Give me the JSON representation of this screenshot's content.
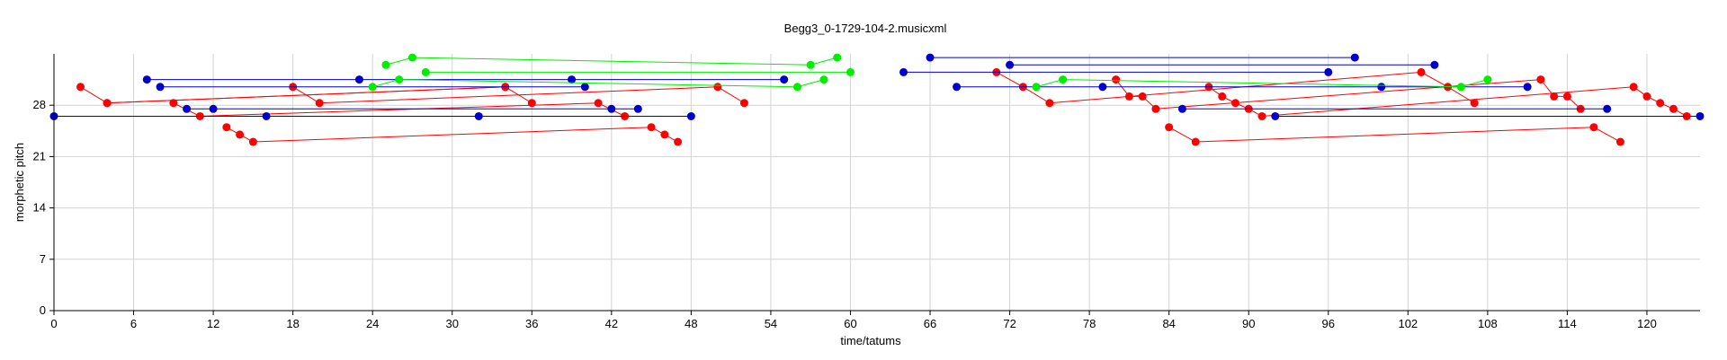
{
  "chart_data": {
    "type": "line",
    "title": "Begg3_0-1729-104-2.musicxml",
    "xlabel": "time/tatums",
    "ylabel": "morphetic pitch",
    "xlim": [
      0,
      124
    ],
    "ylim": [
      0,
      35
    ],
    "xticks": [
      0,
      6,
      12,
      18,
      24,
      30,
      36,
      42,
      48,
      54,
      60,
      66,
      72,
      78,
      84,
      90,
      96,
      102,
      108,
      114,
      120
    ],
    "yticks": [
      0,
      7,
      14,
      21,
      28
    ],
    "grid": true,
    "colors": {
      "red": "#ff0000",
      "blue": "#0000cc",
      "green": "#00ee00"
    },
    "series": [
      {
        "color": "red",
        "segments": [
          [
            [
              2,
              30.5
            ],
            [
              4,
              28.3
            ],
            [
              34,
              30.5
            ],
            [
              36,
              28.3
            ]
          ],
          [
            [
              4,
              28.3
            ],
            [
              34,
              30.5
            ]
          ],
          [
            [
              9,
              28.3
            ],
            [
              11,
              26.5
            ],
            [
              41,
              28.3
            ],
            [
              43,
              26.5
            ]
          ],
          [
            [
              13,
              25
            ],
            [
              14,
              24
            ],
            [
              15,
              23
            ],
            [
              45,
              25
            ],
            [
              46,
              24
            ],
            [
              47,
              23
            ]
          ],
          [
            [
              18,
              30.5
            ],
            [
              20,
              28.3
            ],
            [
              50,
              30.5
            ],
            [
              52,
              28.3
            ]
          ],
          [
            [
              71,
              32.5
            ],
            [
              73,
              30.5
            ],
            [
              75,
              28.3
            ],
            [
              103,
              32.5
            ],
            [
              105,
              30.5
            ],
            [
              107,
              28.3
            ]
          ],
          [
            [
              80,
              31.5
            ],
            [
              81,
              29.2
            ],
            [
              82,
              29.2
            ],
            [
              83,
              27.5
            ],
            [
              112,
              31.5
            ],
            [
              113,
              29.2
            ],
            [
              114,
              29.2
            ],
            [
              115,
              27.5
            ]
          ],
          [
            [
              84,
              25
            ],
            [
              86,
              23
            ],
            [
              116,
              25
            ],
            [
              118,
              23
            ]
          ],
          [
            [
              87,
              30.5
            ],
            [
              88,
              29.2
            ],
            [
              89,
              28.3
            ],
            [
              90,
              27.5
            ],
            [
              91,
              26.5
            ],
            [
              119,
              30.5
            ],
            [
              120,
              29.2
            ],
            [
              121,
              28.3
            ],
            [
              122,
              27.5
            ],
            [
              123,
              26.5
            ]
          ]
        ]
      },
      {
        "color": "blue",
        "segments": [
          [
            [
              0,
              26.5
            ],
            [
              32,
              26.5
            ]
          ],
          [
            [
              7,
              31.5
            ],
            [
              23,
              31.5
            ],
            [
              39,
              31.5
            ],
            [
              55,
              31.5
            ]
          ],
          [
            [
              8,
              30.5
            ],
            [
              40,
              30.5
            ]
          ],
          [
            [
              10,
              27.5
            ],
            [
              12,
              27.5
            ],
            [
              42,
              27.5
            ],
            [
              44,
              27.5
            ]
          ],
          [
            [
              16,
              26.5
            ],
            [
              48,
              26.5
            ]
          ],
          [
            [
              64,
              32.5
            ],
            [
              96,
              32.5
            ]
          ],
          [
            [
              66,
              34.5
            ],
            [
              98,
              34.5
            ]
          ],
          [
            [
              68,
              30.5
            ],
            [
              79,
              30.5
            ],
            [
              100,
              30.5
            ],
            [
              111,
              30.5
            ]
          ],
          [
            [
              72,
              33.5
            ],
            [
              104,
              33.5
            ]
          ],
          [
            [
              85,
              27.5
            ],
            [
              117,
              27.5
            ]
          ],
          [
            [
              92,
              26.5
            ],
            [
              124,
              26.5
            ]
          ]
        ]
      },
      {
        "color": "green",
        "segments": [
          [
            [
              24,
              30.5
            ],
            [
              26,
              31.5
            ],
            [
              56,
              30.5
            ],
            [
              58,
              31.5
            ]
          ],
          [
            [
              25,
              33.5
            ],
            [
              27,
              34.5
            ],
            [
              57,
              33.5
            ],
            [
              59,
              34.5
            ]
          ],
          [
            [
              28,
              32.5
            ],
            [
              60,
              32.5
            ]
          ],
          [
            [
              74,
              30.5
            ],
            [
              76,
              31.5
            ],
            [
              106,
              30.5
            ],
            [
              108,
              31.5
            ]
          ]
        ]
      }
    ]
  }
}
